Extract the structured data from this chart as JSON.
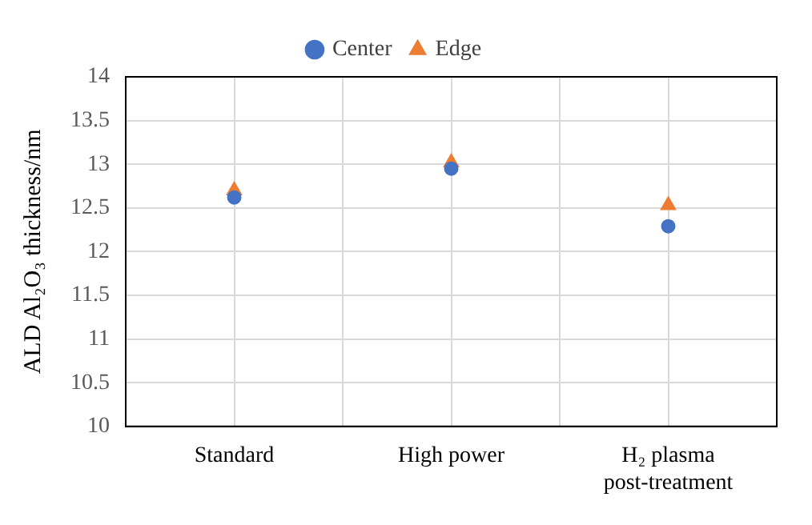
{
  "chart_data": {
    "type": "scatter",
    "ylabel": "ALD Al₂O₃ thickness/nm",
    "categories": [
      "Standard",
      "High power",
      "H₂ plasma post-treatment"
    ],
    "series": [
      {
        "name": "Center",
        "color": "#4472c4",
        "marker": "circle",
        "values": [
          12.62,
          12.95,
          12.29
        ]
      },
      {
        "name": "Edge",
        "color": "#ed7d31",
        "marker": "triangle",
        "values": [
          12.7,
          13.02,
          12.53
        ]
      }
    ],
    "ylim": [
      10,
      14
    ],
    "yticks": [
      10,
      10.5,
      11,
      11.5,
      12,
      12.5,
      13,
      13.5,
      14
    ],
    "grid": true,
    "legend": "top"
  }
}
